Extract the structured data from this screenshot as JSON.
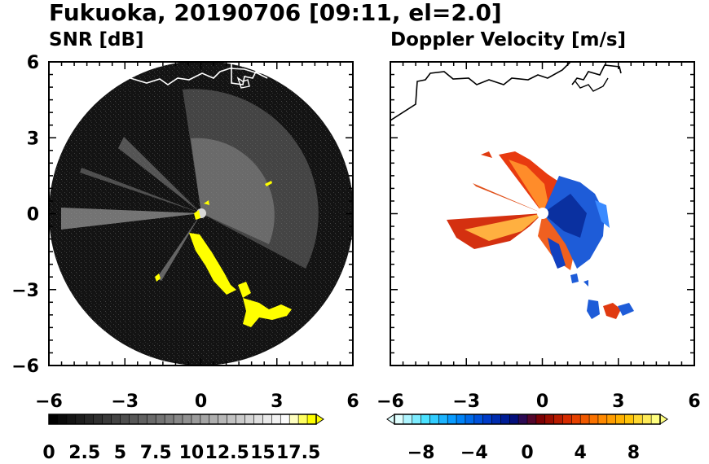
{
  "title": "Fukuoka, 20190706 [09:11, el=2.0]",
  "chart_data": [
    {
      "type": "heatmap",
      "title": "SNR [dB]",
      "xlim": [
        -6,
        6
      ],
      "ylim": [
        -6,
        6
      ],
      "xticks": [
        "−6",
        "−3",
        "0",
        "3",
        "6"
      ],
      "yticks": [
        "6",
        "3",
        "0",
        "−3",
        "−6"
      ],
      "colorbar": {
        "min": 0,
        "max": 18.75,
        "extend": "max",
        "labels": [
          "0",
          "2.5",
          "5",
          "7.5",
          "10",
          "12.5",
          "15",
          "17.5"
        ],
        "palette": [
          "#000000",
          "#1a1a1a",
          "#333333",
          "#4d4d4d",
          "#666666",
          "#808080",
          "#999999",
          "#b3b3b3",
          "#cccccc",
          "#e6e6e6",
          "#ffffff",
          "#ffff00"
        ]
      },
      "coast_color": "#ffffff",
      "echo_color": "#ffff00"
    },
    {
      "type": "heatmap",
      "title": "Doppler Velocity [m/s]",
      "xlim": [
        -6,
        6
      ],
      "ylim": [
        -6,
        6
      ],
      "xticks": [
        "−6",
        "−3",
        "0",
        "3",
        "6"
      ],
      "yticks": [],
      "colorbar": {
        "min": -10,
        "max": 10,
        "extend": "both",
        "labels": [
          "−8",
          "−4",
          "0",
          "4",
          "8"
        ],
        "palette": [
          "#e0ffff",
          "#40e0ff",
          "#0090ff",
          "#0040d0",
          "#001080",
          "#800000",
          "#e03000",
          "#ff8000",
          "#ffc000",
          "#ffff80"
        ]
      },
      "coast_color": "#000000",
      "towards_color": "#1e5cd8",
      "away_color": "#ff6a1a"
    }
  ]
}
